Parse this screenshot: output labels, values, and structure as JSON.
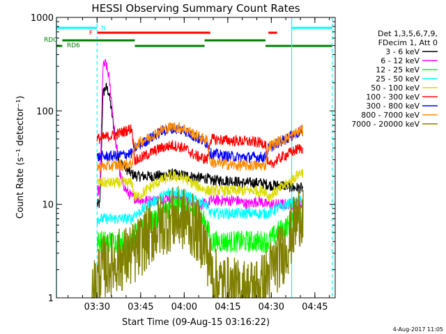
{
  "chart_data": {
    "type": "line",
    "title": "HESSI Observing Summary Count Rates",
    "xlabel": "Start Time (09-Aug-15 03:16:22)",
    "ylabel": "Count Rate (s⁻¹ detector⁻¹)",
    "x_unit": "minutes since 03:16:22",
    "xlim": [
      0,
      96
    ],
    "ylim": [
      1,
      1000
    ],
    "yscale": "log",
    "grid": false,
    "x_ticks": [
      {
        "x": 14,
        "label": "03:30"
      },
      {
        "x": 29,
        "label": "03:45"
      },
      {
        "x": 44,
        "label": "04:00"
      },
      {
        "x": 59,
        "label": "04:15"
      },
      {
        "x": 74,
        "label": "04:30"
      },
      {
        "x": 89,
        "label": "04:45"
      }
    ],
    "y_ticks": [
      {
        "y": 1,
        "label": "1"
      },
      {
        "y": 10,
        "label": "10"
      },
      {
        "y": 100,
        "label": "100"
      },
      {
        "y": 1000,
        "label": "1000"
      }
    ],
    "legend": {
      "placement": "right",
      "header": [
        "Det 1,3,5,6,7,9,",
        "FDecim 1, Att 0"
      ]
    },
    "series": [
      {
        "name": "3 - 6 keV",
        "color": "#000000",
        "points": [
          [
            14,
            10
          ],
          [
            15,
            10
          ],
          [
            16,
            150
          ],
          [
            17,
            180
          ],
          [
            18,
            160
          ],
          [
            20,
            60
          ],
          [
            21,
            35
          ],
          [
            22,
            28
          ],
          [
            24,
            24
          ],
          [
            26,
            21
          ],
          [
            28,
            20
          ],
          [
            34,
            20
          ],
          [
            40,
            21
          ],
          [
            46,
            20
          ],
          [
            50,
            19
          ],
          [
            52,
            19
          ],
          [
            53,
            18
          ],
          [
            56,
            18
          ],
          [
            60,
            18
          ],
          [
            64,
            17
          ],
          [
            68,
            17
          ],
          [
            70,
            17
          ],
          [
            74,
            16
          ],
          [
            78,
            16
          ],
          [
            82,
            15
          ],
          [
            85,
            15
          ]
        ]
      },
      {
        "name": "6 - 12 keV",
        "color": "#ff00ff",
        "points": [
          [
            14,
            14
          ],
          [
            15,
            14
          ],
          [
            16,
            300
          ],
          [
            17,
            320
          ],
          [
            18,
            240
          ],
          [
            19,
            130
          ],
          [
            20,
            60
          ],
          [
            21,
            32
          ],
          [
            22,
            20
          ],
          [
            24,
            14
          ],
          [
            26,
            12
          ],
          [
            30,
            11
          ],
          [
            34,
            11
          ],
          [
            38,
            12
          ],
          [
            42,
            12
          ],
          [
            46,
            11
          ],
          [
            50,
            10
          ],
          [
            52,
            10
          ],
          [
            53,
            11
          ],
          [
            58,
            11
          ],
          [
            62,
            11
          ],
          [
            66,
            10
          ],
          [
            70,
            11
          ],
          [
            72,
            10
          ],
          [
            73,
            10
          ],
          [
            76,
            10
          ],
          [
            80,
            10
          ],
          [
            84,
            10
          ],
          [
            85,
            9
          ]
        ]
      },
      {
        "name": "12 - 25 keV",
        "color": "#00ff00",
        "points": [
          [
            14,
            4
          ],
          [
            20,
            4
          ],
          [
            26,
            4
          ],
          [
            27,
            5
          ],
          [
            28,
            5
          ],
          [
            32,
            6
          ],
          [
            36,
            8
          ],
          [
            40,
            10
          ],
          [
            44,
            10
          ],
          [
            48,
            8
          ],
          [
            52,
            6
          ],
          [
            53,
            4
          ],
          [
            72,
            4
          ],
          [
            73,
            4
          ],
          [
            76,
            5
          ],
          [
            80,
            6
          ],
          [
            84,
            8
          ],
          [
            85,
            8
          ]
        ]
      },
      {
        "name": "25 - 50 keV",
        "color": "#00ffff",
        "points": [
          [
            14,
            7
          ],
          [
            20,
            7
          ],
          [
            26,
            7
          ],
          [
            27,
            8
          ],
          [
            28,
            8
          ],
          [
            32,
            10
          ],
          [
            36,
            12
          ],
          [
            40,
            14
          ],
          [
            44,
            13
          ],
          [
            48,
            11
          ],
          [
            52,
            10
          ],
          [
            53,
            8
          ],
          [
            72,
            8
          ],
          [
            73,
            8
          ],
          [
            76,
            9
          ],
          [
            80,
            10
          ],
          [
            84,
            11
          ],
          [
            85,
            11
          ]
        ]
      },
      {
        "name": "50 - 100 keV",
        "color": "#dcdc00",
        "points": [
          [
            14,
            17
          ],
          [
            20,
            17
          ],
          [
            26,
            17
          ],
          [
            27,
            12
          ],
          [
            28,
            12
          ],
          [
            32,
            15
          ],
          [
            36,
            18
          ],
          [
            40,
            20
          ],
          [
            44,
            19
          ],
          [
            48,
            16
          ],
          [
            52,
            14
          ],
          [
            53,
            14
          ],
          [
            72,
            14
          ],
          [
            73,
            12
          ],
          [
            76,
            14
          ],
          [
            80,
            17
          ],
          [
            84,
            22
          ],
          [
            85,
            22
          ]
        ]
      },
      {
        "name": "100 - 300 keV",
        "color": "#ff0000",
        "points": [
          [
            14,
            50
          ],
          [
            20,
            55
          ],
          [
            26,
            65
          ],
          [
            27,
            30
          ],
          [
            28,
            30
          ],
          [
            32,
            35
          ],
          [
            36,
            40
          ],
          [
            40,
            43
          ],
          [
            44,
            40
          ],
          [
            48,
            33
          ],
          [
            52,
            30
          ],
          [
            53,
            50
          ],
          [
            60,
            48
          ],
          [
            66,
            47
          ],
          [
            72,
            45
          ],
          [
            73,
            25
          ],
          [
            76,
            30
          ],
          [
            80,
            35
          ],
          [
            84,
            40
          ],
          [
            85,
            40
          ]
        ]
      },
      {
        "name": "300 - 800 keV",
        "color": "#0000ff",
        "points": [
          [
            14,
            32
          ],
          [
            20,
            33
          ],
          [
            26,
            35
          ],
          [
            27,
            40
          ],
          [
            28,
            42
          ],
          [
            32,
            50
          ],
          [
            36,
            60
          ],
          [
            40,
            65
          ],
          [
            44,
            62
          ],
          [
            48,
            52
          ],
          [
            52,
            45
          ],
          [
            53,
            35
          ],
          [
            58,
            33
          ],
          [
            62,
            32
          ],
          [
            66,
            32
          ],
          [
            72,
            32
          ],
          [
            73,
            40
          ],
          [
            76,
            45
          ],
          [
            80,
            52
          ],
          [
            84,
            60
          ],
          [
            85,
            60
          ]
        ]
      },
      {
        "name": "800 - 7000 keV",
        "color": "#ff8c00",
        "points": [
          [
            14,
            25
          ],
          [
            20,
            26
          ],
          [
            26,
            27
          ],
          [
            27,
            42
          ],
          [
            28,
            45
          ],
          [
            32,
            52
          ],
          [
            36,
            62
          ],
          [
            40,
            68
          ],
          [
            44,
            65
          ],
          [
            48,
            55
          ],
          [
            52,
            48
          ],
          [
            53,
            28
          ],
          [
            58,
            27
          ],
          [
            62,
            26
          ],
          [
            66,
            26
          ],
          [
            72,
            26
          ],
          [
            73,
            42
          ],
          [
            76,
            46
          ],
          [
            80,
            52
          ],
          [
            84,
            62
          ],
          [
            85,
            62
          ]
        ]
      },
      {
        "name": "7000 - 20000 keV",
        "color": "#808000",
        "points": [
          [
            12,
            1
          ],
          [
            14,
            1.5
          ],
          [
            15,
            2
          ],
          [
            17,
            2.2
          ],
          [
            19,
            2.3
          ],
          [
            21,
            2.5
          ],
          [
            23,
            2.6
          ],
          [
            25,
            2.8
          ],
          [
            27,
            3
          ],
          [
            30,
            4
          ],
          [
            33,
            5
          ],
          [
            36,
            6
          ],
          [
            40,
            7
          ],
          [
            44,
            7
          ],
          [
            48,
            5.5
          ],
          [
            50,
            4.5
          ],
          [
            52,
            3
          ],
          [
            54,
            1.6
          ],
          [
            58,
            1.3
          ],
          [
            62,
            1.2
          ],
          [
            66,
            1.2
          ],
          [
            70,
            1.3
          ],
          [
            72,
            1.5
          ],
          [
            74,
            2
          ],
          [
            76,
            2.5
          ],
          [
            78,
            3
          ],
          [
            80,
            4
          ],
          [
            82,
            6
          ],
          [
            84,
            8
          ],
          [
            85,
            8
          ]
        ]
      }
    ],
    "flags": [
      {
        "label": "N",
        "color": "#00ffff",
        "segments": [
          [
            0,
            14
          ],
          [
            81,
            95
          ]
        ]
      },
      {
        "label": "F",
        "color": "#ff0000",
        "segments": [
          [
            14,
            53
          ],
          [
            73,
            76
          ]
        ]
      },
      {
        "label": "RDC",
        "color": "#008000",
        "segments": [
          [
            2,
            27
          ],
          [
            51,
            72
          ]
        ]
      },
      {
        "label": "RD6",
        "color": "#008000",
        "segments": [
          [
            0,
            2
          ],
          [
            27,
            51
          ],
          [
            72,
            95
          ]
        ]
      }
    ],
    "vlines": [
      {
        "x": 14,
        "style": "dashed",
        "color": "#00ffff"
      },
      {
        "x": 81,
        "style": "solid",
        "color": "#00ffff"
      },
      {
        "x": 95,
        "style": "dashed",
        "color": "#00ffff"
      },
      {
        "x": 0,
        "style": "solid",
        "color": "#00ffff"
      }
    ]
  },
  "footer_date": "4-Aug-2017 11:05"
}
